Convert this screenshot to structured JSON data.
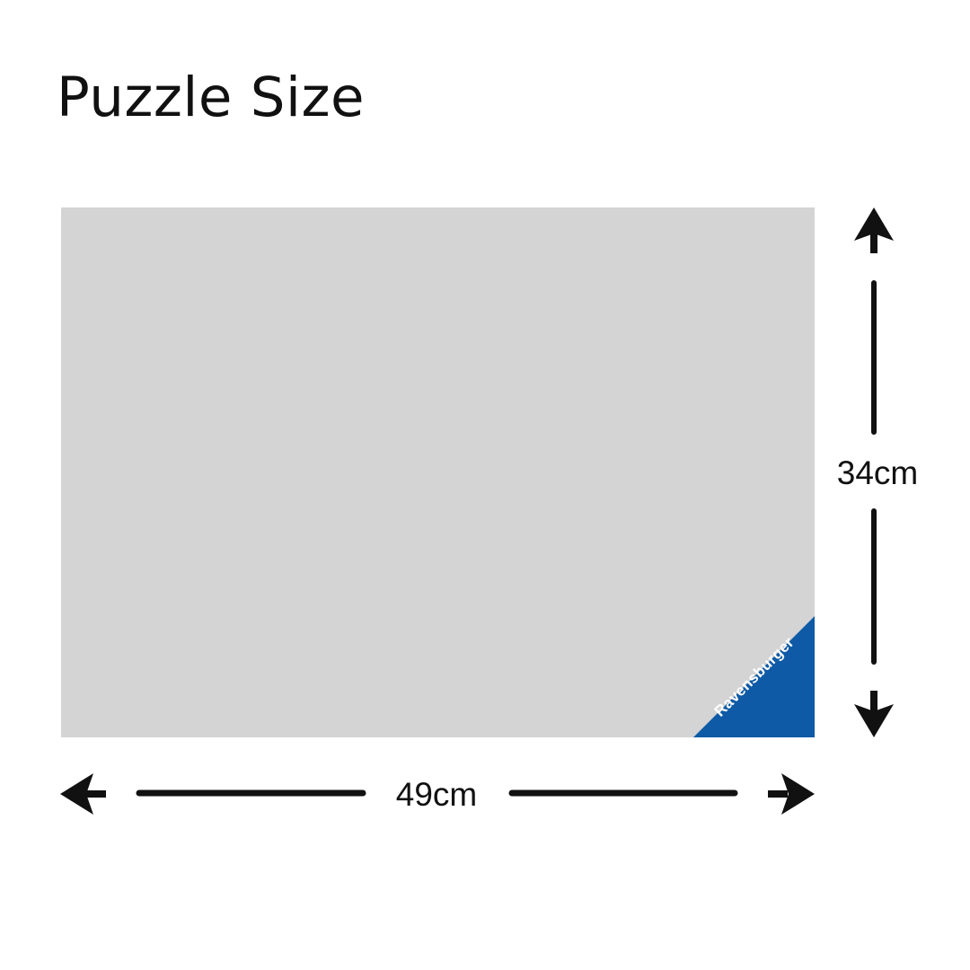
{
  "title": "Puzzle Size",
  "puzzle": {
    "brand": "Ravensburger",
    "width_label": "49cm",
    "height_label": "34cm"
  },
  "colors": {
    "puzzle_fill": "#d4d4d4",
    "brand_blue": "#0e5aa6",
    "text": "#111111"
  },
  "icons": [
    "arrow-left-icon",
    "arrow-right-icon",
    "arrow-up-icon",
    "arrow-down-icon"
  ]
}
